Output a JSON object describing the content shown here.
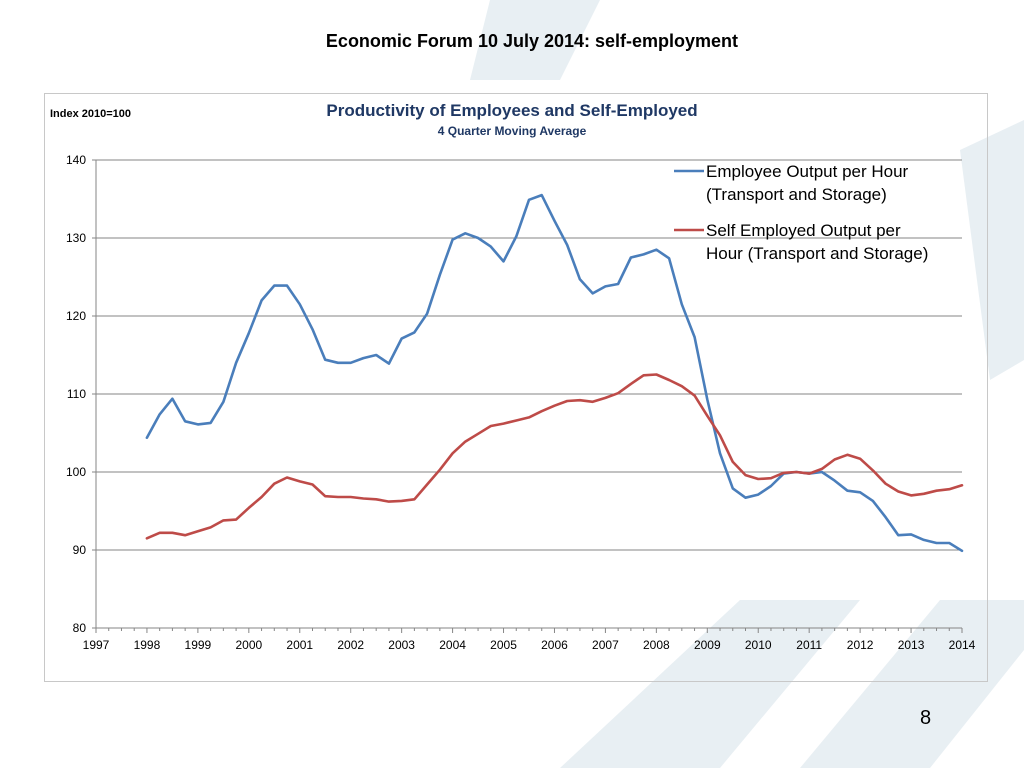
{
  "slide": {
    "title": "Economic Forum 10 July 2014: self-employment",
    "page_number": "8"
  },
  "colors": {
    "employee_line": "#4a7ebb",
    "self_employed_line": "#be4b48",
    "title_text": "#1f3864",
    "watermark": "#e4ecf1"
  },
  "chart_data": {
    "type": "line",
    "title": "Productivity of Employees and Self-Employed",
    "subtitle": "4 Quarter Moving Average",
    "ylabel": "Index 2010=100",
    "xlabel": "",
    "xlim": [
      1997,
      2014
    ],
    "ylim": [
      80,
      140
    ],
    "yticks": [
      80,
      90,
      100,
      110,
      120,
      130,
      140
    ],
    "xticks": [
      "1997",
      "1998",
      "1999",
      "2000",
      "2001",
      "2002",
      "2003",
      "2004",
      "2005",
      "2006",
      "2007",
      "2008",
      "2009",
      "2010",
      "2011",
      "2012",
      "2013",
      "2014"
    ],
    "grid": true,
    "legend": "top-right",
    "x": [
      1998,
      1998.25,
      1998.5,
      1998.75,
      1999,
      1999.25,
      1999.5,
      1999.75,
      2000,
      2000.25,
      2000.5,
      2000.75,
      2001,
      2001.25,
      2001.5,
      2001.75,
      2002,
      2002.25,
      2002.5,
      2002.75,
      2003,
      2003.25,
      2003.5,
      2003.75,
      2004,
      2004.25,
      2004.5,
      2004.75,
      2005,
      2005.25,
      2005.5,
      2005.75,
      2006,
      2006.25,
      2006.5,
      2006.75,
      2007,
      2007.25,
      2007.5,
      2007.75,
      2008,
      2008.25,
      2008.5,
      2008.75,
      2009,
      2009.25,
      2009.5,
      2009.75,
      2010,
      2010.25,
      2010.5,
      2010.75,
      2011,
      2011.25,
      2011.5,
      2011.75,
      2012,
      2012.25,
      2012.5,
      2012.75,
      2013,
      2013.25,
      2013.5,
      2013.75,
      2014
    ],
    "series": [
      {
        "name": "Employee Output per Hour (Transport and Storage)",
        "legend_lines": [
          "Employee Output per Hour",
          "(Transport and Storage)"
        ],
        "values": [
          104.4,
          107.4,
          109.4,
          106.5,
          106.1,
          106.3,
          109.0,
          114.0,
          117.8,
          122.0,
          123.9,
          123.9,
          121.5,
          118.3,
          114.4,
          114.0,
          114.0,
          114.6,
          115.0,
          113.9,
          117.1,
          117.9,
          120.3,
          125.3,
          129.8,
          130.6,
          130.0,
          128.9,
          127.0,
          130.2,
          134.9,
          135.5,
          132.2,
          129.1,
          124.7,
          122.9,
          123.8,
          124.1,
          127.5,
          127.9,
          128.5,
          127.4,
          121.5,
          117.3,
          109.3,
          102.4,
          97.9,
          96.7,
          97.1,
          98.2,
          99.8,
          100.0,
          99.8,
          100.0,
          98.9,
          97.6,
          97.4,
          96.3,
          94.2,
          91.9,
          92.0,
          91.3,
          90.9,
          90.9,
          89.9
        ]
      },
      {
        "name": "Self Employed Output per Hour (Transport and Storage)",
        "legend_lines": [
          "Self Employed Output per",
          "Hour (Transport and Storage)"
        ],
        "values": [
          91.5,
          92.2,
          92.2,
          91.9,
          92.4,
          92.9,
          93.8,
          93.9,
          95.4,
          96.8,
          98.5,
          99.3,
          98.8,
          98.4,
          96.9,
          96.8,
          96.8,
          96.6,
          96.5,
          96.2,
          96.3,
          96.5,
          98.4,
          100.3,
          102.4,
          103.9,
          104.9,
          105.9,
          106.2,
          106.6,
          107.0,
          107.8,
          108.5,
          109.1,
          109.2,
          109.0,
          109.5,
          110.1,
          111.3,
          112.4,
          112.5,
          111.8,
          111.0,
          109.8,
          107.2,
          104.7,
          101.3,
          99.6,
          99.1,
          99.2,
          99.9,
          100.0,
          99.8,
          100.4,
          101.6,
          102.2,
          101.7,
          100.2,
          98.5,
          97.5,
          97.0,
          97.2,
          97.6,
          97.8,
          98.3
        ]
      }
    ]
  }
}
